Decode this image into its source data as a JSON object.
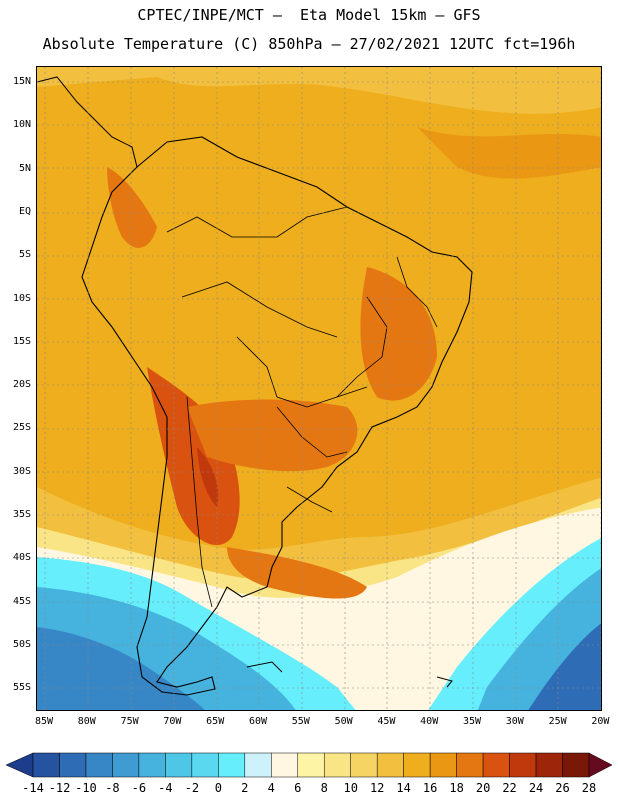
{
  "header": {
    "line1": "CPTEC/INPE/MCT –  Eta Model 15km – GFS",
    "line2": "Absolute Temperature (C) 850hPa – 27/02/2021 12UTC fct=196h"
  },
  "axes": {
    "lat_labels": [
      "15N",
      "10N",
      "5N",
      "EQ",
      "5S",
      "10S",
      "15S",
      "20S",
      "25S",
      "30S",
      "35S",
      "40S",
      "45S",
      "50S",
      "55S"
    ],
    "lon_labels": [
      "85W",
      "80W",
      "75W",
      "70W",
      "65W",
      "60W",
      "55W",
      "50W",
      "45W",
      "40W",
      "35W",
      "30W",
      "25W",
      "20W"
    ]
  },
  "colorbar": {
    "labels": [
      "-14",
      "-12",
      "-10",
      "-8",
      "-6",
      "-4",
      "-2",
      "0",
      "2",
      "4",
      "6",
      "8",
      "10",
      "12",
      "14",
      "16",
      "18",
      "20",
      "22",
      "24",
      "26",
      "28"
    ],
    "colors": [
      "#1e3c8c",
      "#2553a0",
      "#2e6db5",
      "#3786c6",
      "#3f9cd2",
      "#46b3de",
      "#4ec7e6",
      "#5ad8ef",
      "#66eefc",
      "#cdf2fb",
      "#fff7e1",
      "#fdf5a5",
      "#fae586",
      "#f6d463",
      "#f2c03e",
      "#eeae1d",
      "#ea9814",
      "#e57712",
      "#d9520f",
      "#c0390c",
      "#9c250a",
      "#7a1808",
      "#660a20"
    ]
  },
  "legend_colors": {
    "cold_deep": "#1e3c8c",
    "cold": "#3f9cd2",
    "cyan": "#66eefc",
    "cool_light": "#cdf2fb",
    "neutral": "#fff7e1",
    "warm_light": "#fae586",
    "warm": "#f2c03e",
    "orange": "#eeae1d",
    "hot": "#e57712",
    "hotter": "#d9520f",
    "hottest": "#c0390c"
  }
}
